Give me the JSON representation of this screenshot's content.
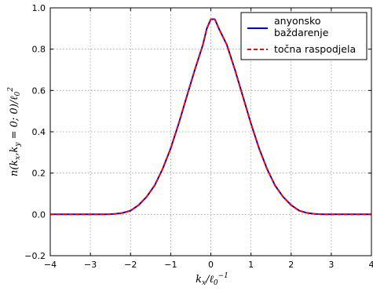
{
  "chart_data": {
    "type": "line",
    "title": "",
    "xlabel": "k_x/ℓ_0^{-1}",
    "ylabel": "n(k_x,k_y=0;0)/ℓ_0^2",
    "xlim": [
      -4,
      4
    ],
    "ylim": [
      -0.2,
      1.0
    ],
    "xticks": [
      -4,
      -3,
      -2,
      -1,
      0,
      1,
      2,
      3,
      4
    ],
    "yticks": [
      -0.2,
      0.0,
      0.2,
      0.4,
      0.6,
      0.8,
      1.0
    ],
    "xtick_labels": [
      "−4",
      "−3",
      "−2",
      "−1",
      "0",
      "1",
      "2",
      "3",
      "4"
    ],
    "ytick_labels": [
      "−0.2",
      "0.0",
      "0.2",
      "0.4",
      "0.6",
      "0.8",
      "1.0"
    ],
    "grid": true,
    "legend_position": "top-right",
    "x": [
      -4.0,
      -3.8,
      -3.6,
      -3.4,
      -3.2,
      -3.0,
      -2.8,
      -2.6,
      -2.4,
      -2.2,
      -2.0,
      -1.8,
      -1.6,
      -1.4,
      -1.2,
      -1.0,
      -0.8,
      -0.6,
      -0.4,
      -0.2,
      -0.1,
      0.0,
      0.1,
      0.2,
      0.4,
      0.6,
      0.8,
      1.0,
      1.2,
      1.4,
      1.6,
      1.8,
      2.0,
      2.2,
      2.4,
      2.6,
      2.8,
      3.0,
      3.2,
      3.4,
      3.6,
      3.8,
      4.0
    ],
    "series": [
      {
        "name": "anyonsko baždarenje",
        "color": "#0000cc",
        "style": "solid",
        "values": [
          0.0,
          0.0,
          0.0,
          0.0,
          0.0,
          0.0,
          0.0,
          0.0,
          0.002,
          0.007,
          0.018,
          0.045,
          0.085,
          0.14,
          0.22,
          0.32,
          0.44,
          0.57,
          0.7,
          0.82,
          0.9,
          0.945,
          0.945,
          0.9,
          0.82,
          0.7,
          0.57,
          0.44,
          0.32,
          0.22,
          0.14,
          0.085,
          0.045,
          0.018,
          0.007,
          0.002,
          0.0,
          0.0,
          0.0,
          0.0,
          0.0,
          0.0,
          0.0
        ]
      },
      {
        "name": "točna raspodjela",
        "color": "#ff0000",
        "style": "dashed",
        "values": [
          0.0,
          0.0,
          0.0,
          0.0,
          0.0,
          0.0,
          0.0,
          0.0,
          0.002,
          0.007,
          0.018,
          0.045,
          0.085,
          0.14,
          0.22,
          0.32,
          0.44,
          0.57,
          0.7,
          0.82,
          0.9,
          0.945,
          0.945,
          0.9,
          0.82,
          0.7,
          0.57,
          0.44,
          0.32,
          0.22,
          0.14,
          0.085,
          0.045,
          0.018,
          0.007,
          0.002,
          0.0,
          0.0,
          0.0,
          0.0,
          0.0,
          0.0,
          0.0
        ]
      }
    ],
    "legend": {
      "entry1_line1": "anyonsko",
      "entry1_line2": "baždarenje",
      "entry2": "točna raspodjela"
    }
  }
}
